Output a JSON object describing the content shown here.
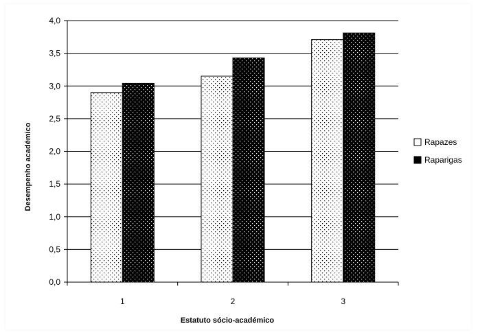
{
  "chart_data": {
    "type": "bar",
    "categories": [
      "1",
      "2",
      "3"
    ],
    "series": [
      {
        "name": "Rapazes",
        "values": [
          2.9,
          3.15,
          3.71
        ],
        "fill": "#ffffff",
        "dots": "#000000"
      },
      {
        "name": "Raparigas",
        "values": [
          3.04,
          3.43,
          3.81
        ],
        "fill": "#000000",
        "dots": "#ffffff"
      }
    ],
    "xlabel": "Estatuto sócio-académico",
    "ylabel": "Desempenho académico",
    "ylim": [
      0,
      4
    ],
    "yticks": [
      "0,0",
      "0,5",
      "1,0",
      "1,5",
      "2,0",
      "2,5",
      "3,0",
      "3,5",
      "4,0"
    ],
    "ytick_values": [
      0,
      0.5,
      1,
      1.5,
      2,
      2.5,
      3,
      3.5,
      4
    ],
    "grid": true,
    "legend_position": "right"
  }
}
